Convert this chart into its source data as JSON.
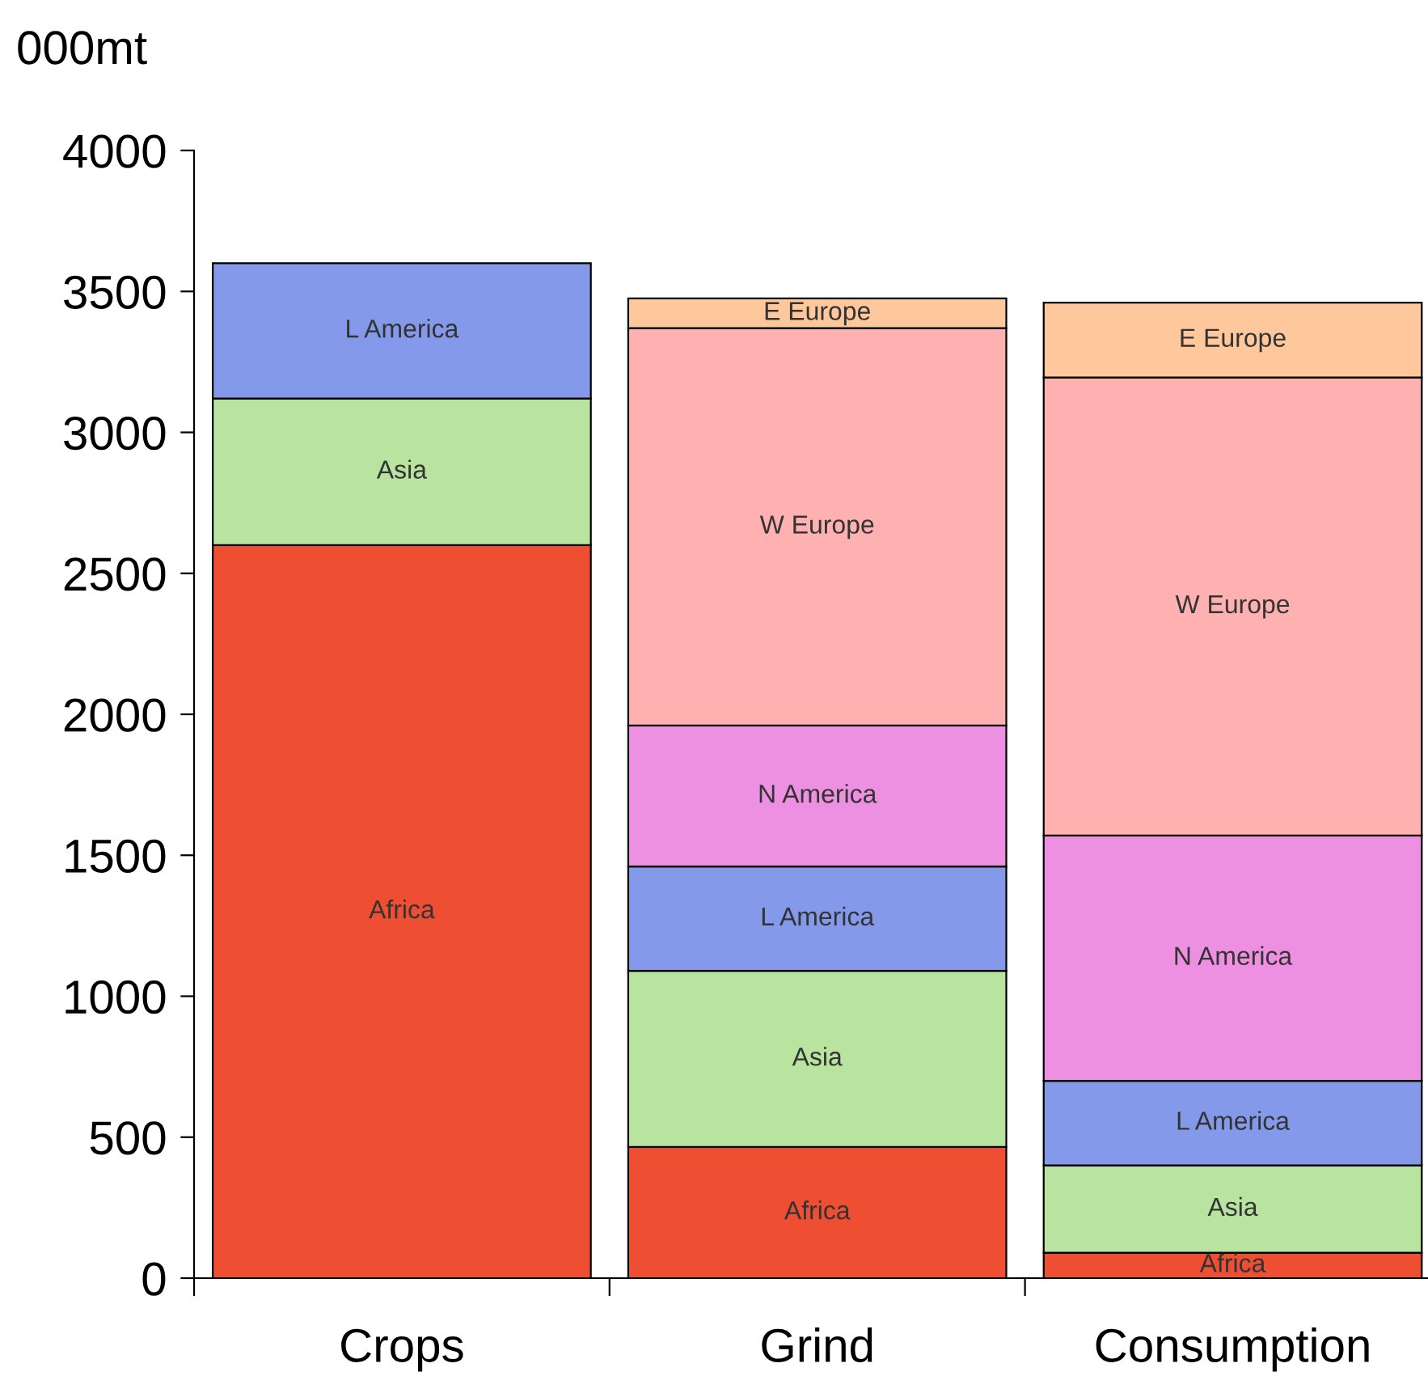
{
  "chart_data": {
    "type": "bar",
    "stacked": true,
    "ylabel": "000mt",
    "categories": [
      "Crops",
      "Grind",
      "Consumption"
    ],
    "series": [
      {
        "name": "Africa",
        "color": "#ee4f32",
        "values": [
          2600,
          465,
          90
        ]
      },
      {
        "name": "Asia",
        "color": "#b8e4a0",
        "values": [
          520,
          625,
          310
        ]
      },
      {
        "name": "L America",
        "color": "#8599ea",
        "values": [
          480,
          370,
          300
        ]
      },
      {
        "name": "N America",
        "color": "#ee90e2",
        "values": [
          null,
          500,
          870
        ]
      },
      {
        "name": "W Europe",
        "color": "#ffb0b0",
        "values": [
          null,
          1410,
          1625
        ]
      },
      {
        "name": "E Europe",
        "color": "#ffc89c",
        "values": [
          null,
          105,
          265
        ]
      }
    ],
    "ylim": [
      0,
      4000
    ],
    "yticks": [
      0,
      500,
      1000,
      1500,
      2000,
      2500,
      3000,
      3500,
      4000
    ],
    "grid": false,
    "legend": false
  }
}
